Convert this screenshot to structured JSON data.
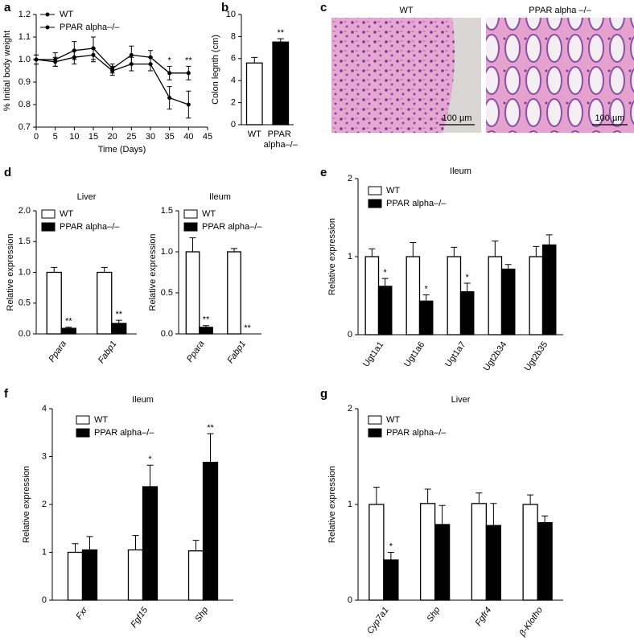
{
  "chart_data": [
    {
      "type": "line",
      "panel": "a",
      "xlabel": "Time (Days)",
      "ylabel": "% Initial body weight",
      "x": [
        0,
        5,
        10,
        15,
        20,
        25,
        30,
        35,
        40
      ],
      "xlim": [
        0,
        45
      ],
      "xticks": [
        0,
        5,
        10,
        15,
        20,
        25,
        30,
        35,
        40,
        45
      ],
      "ylim": [
        0.7,
        1.2
      ],
      "yticks": [
        0.7,
        0.8,
        0.9,
        {
          "value": 1,
          "label": "1.0"
        },
        1.1,
        1.2
      ],
      "series": [
        {
          "name": "WT",
          "color": "#000000",
          "values": [
            1.0,
            1.0,
            1.04,
            1.05,
            0.96,
            1.02,
            1.01,
            0.94,
            0.94
          ],
          "errors": [
            0.02,
            0.03,
            0.04,
            0.05,
            0.02,
            0.04,
            0.03,
            0.03,
            0.03
          ],
          "annotations": [
            null,
            null,
            null,
            null,
            null,
            null,
            null,
            "*",
            "**"
          ]
        },
        {
          "name": "PPAR alpha–/–",
          "color": "#000000",
          "values": [
            1.0,
            0.99,
            1.01,
            1.02,
            0.95,
            0.98,
            0.98,
            0.83,
            0.8
          ],
          "errors": [
            0.02,
            0.02,
            0.03,
            0.03,
            0.02,
            0.03,
            0.03,
            0.05,
            0.06
          ],
          "annotations": [
            null,
            null,
            null,
            null,
            null,
            null,
            null,
            null,
            null
          ]
        }
      ]
    },
    {
      "type": "bar",
      "panel": "b",
      "ylabel": "Colon legnth (cm)",
      "categories": [
        "WT",
        "PPAR alpha–/–"
      ],
      "values": [
        5.6,
        7.5
      ],
      "errors": [
        0.5,
        0.3
      ],
      "colors": [
        "#ffffff",
        "#000000"
      ],
      "annotations": [
        null,
        "**"
      ],
      "ylim": [
        0,
        10
      ],
      "yticks": [
        0,
        2,
        4,
        6,
        8,
        10
      ]
    },
    {
      "type": "image",
      "panel": "c",
      "images": [
        {
          "label": "WT",
          "scale_bar": "100 µm"
        },
        {
          "label": "PPAR alpha –/–",
          "scale_bar": "100 µm"
        }
      ]
    },
    {
      "type": "bar",
      "panel": "d",
      "title": "Liver",
      "ylabel": "Relative expression",
      "categories": [
        "Ppara",
        "Fabp1"
      ],
      "ylim": [
        0,
        2
      ],
      "yticks": [
        {
          "value": 0,
          "label": "0.0"
        },
        {
          "value": 0.5,
          "label": "0.5"
        },
        {
          "value": 1,
          "label": "1.0"
        },
        {
          "value": 1.5,
          "label": "1.5"
        },
        {
          "value": 2,
          "label": "2.0"
        }
      ],
      "series": [
        {
          "name": "WT",
          "color": "#ffffff",
          "values": [
            1.0,
            1.0
          ],
          "errors": [
            0.08,
            0.08
          ],
          "annotations": [
            null,
            null
          ]
        },
        {
          "name": "PPAR alpha–/–",
          "color": "#000000",
          "values": [
            0.09,
            0.17
          ],
          "errors": [
            0.02,
            0.05
          ],
          "annotations": [
            "**",
            "**"
          ]
        }
      ]
    },
    {
      "type": "bar",
      "title": "Ileum",
      "ylabel": "Relative expression",
      "categories": [
        "Ppara",
        "Fabp1"
      ],
      "ylim": [
        0,
        1.5
      ],
      "yticks": [
        {
          "value": 0,
          "label": "0.0"
        },
        {
          "value": 0.5,
          "label": "0.5"
        },
        {
          "value": 1,
          "label": "1.0"
        },
        {
          "value": 1.5,
          "label": "1.5"
        }
      ],
      "series": [
        {
          "name": "WT",
          "color": "#ffffff",
          "values": [
            1.0,
            1.0
          ],
          "errors": [
            0.17,
            0.04
          ],
          "annotations": [
            null,
            null
          ]
        },
        {
          "name": "PPAR alpha–/–",
          "color": "#000000",
          "values": [
            0.08,
            0
          ],
          "errors": [
            0.02,
            0
          ],
          "annotations": [
            "**",
            "**"
          ]
        }
      ]
    },
    {
      "type": "bar",
      "panel": "e",
      "title": "Ileum",
      "ylabel": "Relative expression",
      "categories": [
        "Ugt1a1",
        "Ugt1a6",
        "Ugt1a7",
        "Ugt2b34",
        "Ugt2b35"
      ],
      "ylim": [
        0,
        2
      ],
      "yticks": [
        0,
        1,
        2
      ],
      "series": [
        {
          "name": "WT",
          "color": "#ffffff",
          "values": [
            1.0,
            1.0,
            1.0,
            1.0,
            1.0
          ],
          "errors": [
            0.1,
            0.18,
            0.12,
            0.2,
            0.13
          ],
          "annotations": [
            null,
            null,
            null,
            null,
            null
          ]
        },
        {
          "name": "PPAR alpha–/–",
          "color": "#000000",
          "values": [
            0.62,
            0.43,
            0.55,
            0.84,
            1.15
          ],
          "errors": [
            0.1,
            0.08,
            0.11,
            0.06,
            0.13
          ],
          "annotations": [
            "*",
            "*",
            "*",
            null,
            null
          ]
        }
      ]
    },
    {
      "type": "bar",
      "panel": "f",
      "title": "Ileum",
      "ylabel": "Relative expression",
      "categories": [
        "Fxr",
        "Fgf15",
        "Shp"
      ],
      "ylim": [
        0,
        4
      ],
      "yticks": [
        0,
        1,
        2,
        3,
        4
      ],
      "series": [
        {
          "name": "WT",
          "color": "#ffffff",
          "values": [
            1.0,
            1.05,
            1.03
          ],
          "errors": [
            0.18,
            0.3,
            0.22
          ],
          "annotations": [
            null,
            null,
            null
          ]
        },
        {
          "name": "PPAR alpha–/–",
          "color": "#000000",
          "values": [
            1.05,
            2.37,
            2.88
          ],
          "errors": [
            0.28,
            0.45,
            0.6
          ],
          "annotations": [
            null,
            "*",
            "**"
          ]
        }
      ]
    },
    {
      "type": "bar",
      "panel": "g",
      "title": "Liver",
      "ylabel": "Relative expression",
      "categories": [
        "Cyp7a1",
        "Shp",
        "Fgfr4",
        "β-Klotho"
      ],
      "ylim": [
        0,
        2
      ],
      "yticks": [
        0,
        1,
        2
      ],
      "series": [
        {
          "name": "WT",
          "color": "#ffffff",
          "values": [
            1.0,
            1.01,
            1.01,
            1.0
          ],
          "errors": [
            0.18,
            0.15,
            0.11,
            0.1
          ],
          "annotations": [
            null,
            null,
            null,
            null
          ]
        },
        {
          "name": "PPAR alpha–/–",
          "color": "#000000",
          "values": [
            0.42,
            0.79,
            0.78,
            0.81
          ],
          "errors": [
            0.08,
            0.2,
            0.23,
            0.07
          ],
          "annotations": [
            "*",
            null,
            null,
            null
          ]
        }
      ]
    }
  ]
}
